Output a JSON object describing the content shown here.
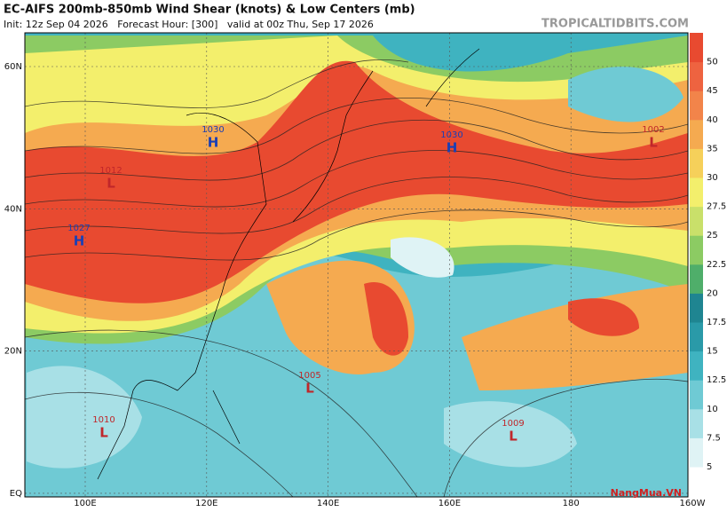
{
  "header": {
    "title": "EC-AIFS 200mb-850mb Wind Shear (knots) & Low Centers (mb)",
    "subtitle": "Init: 12z Sep 04 2026   Forecast Hour: [300]   valid at 00z Thu, Sep 17 2026",
    "source": "TROPICALTIDBITS.COM"
  },
  "map": {
    "lat_labels": [
      "60N",
      "40N",
      "20N",
      "EQ"
    ],
    "lon_labels": [
      "100E",
      "120E",
      "140E",
      "160E",
      "180",
      "160W"
    ],
    "centers": [
      {
        "symbol": "H",
        "pressure": 1030,
        "color": "#1a3fb5"
      },
      {
        "symbol": "H",
        "pressure": 1030,
        "color": "#1a3fb5"
      },
      {
        "symbol": "H",
        "pressure": 1027,
        "color": "#1a3fb5"
      },
      {
        "symbol": "L",
        "pressure": 1012,
        "color": "#c0262a"
      },
      {
        "symbol": "L",
        "pressure": 1002,
        "color": "#c0262a"
      },
      {
        "symbol": "L",
        "pressure": 1005,
        "color": "#c0262a"
      },
      {
        "symbol": "L",
        "pressure": 1010,
        "color": "#c0262a"
      },
      {
        "symbol": "L",
        "pressure": 1009,
        "color": "#c0262a"
      }
    ]
  },
  "colorbar": {
    "ticks": [
      5,
      7.5,
      10,
      12.5,
      15,
      17.5,
      20,
      22.5,
      25,
      27.5,
      30,
      35,
      40,
      45,
      50
    ],
    "colors": [
      "#ffffff",
      "#dff3f5",
      "#a8e0e6",
      "#6fcad4",
      "#3fb3c0",
      "#2a9aa8",
      "#1f8591",
      "#4fae6a",
      "#8ccb63",
      "#c9e06a",
      "#f3ef6c",
      "#f6d05a",
      "#f5aa50",
      "#f2844a",
      "#ee6340",
      "#e84a30"
    ]
  },
  "watermark": "NangMua.VN"
}
